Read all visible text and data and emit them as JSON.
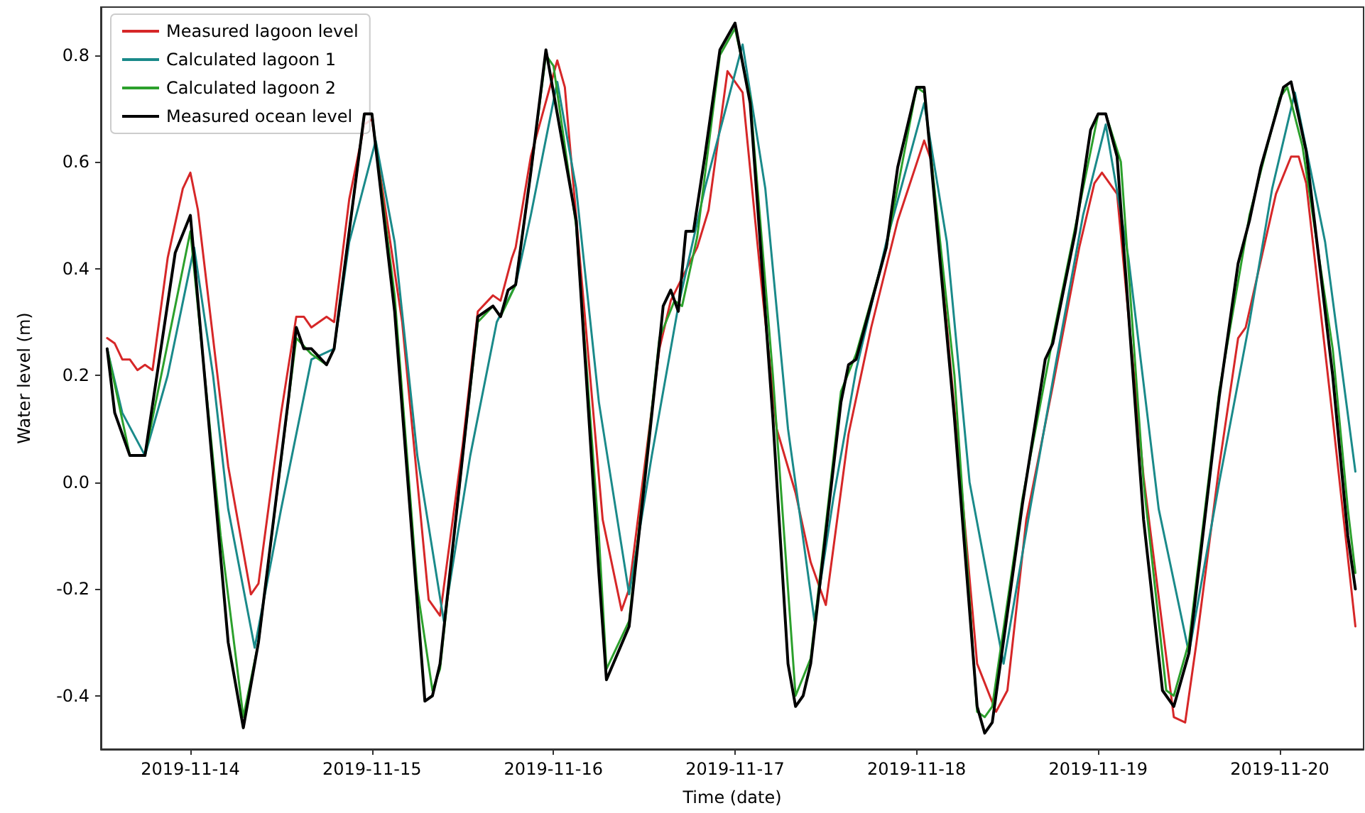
{
  "chart_data": {
    "type": "line",
    "xlabel": "Time (date)",
    "ylabel": "Water level (m)",
    "xlim": [
      "2019-11-13T12:10",
      "2019-11-20T11:05"
    ],
    "xticks": [
      "2019-11-14",
      "2019-11-15",
      "2019-11-16",
      "2019-11-17",
      "2019-11-18",
      "2019-11-19",
      "2019-11-20"
    ],
    "ylim": [
      -0.5,
      0.89
    ],
    "yticks": [
      -0.4,
      -0.2,
      {
        "value": 0,
        "label": "0.0"
      },
      0.2,
      0.4,
      0.6,
      0.8
    ],
    "grid": false,
    "legend": "top left",
    "marker": "none",
    "line_style": "solid",
    "series": [
      {
        "name": "Measured lagoon level",
        "color": "#d62728",
        "x": [
          "2019-11-13T13:00",
          "2019-11-13T14:00",
          "2019-11-13T15:00",
          "2019-11-13T16:00",
          "2019-11-13T17:00",
          "2019-11-13T18:00",
          "2019-11-13T19:00",
          "2019-11-13T21:00",
          "2019-11-13T23:00",
          "2019-11-14T00:00",
          "2019-11-14T01:00",
          "2019-11-14T05:00",
          "2019-11-14T08:00",
          "2019-11-14T09:00",
          "2019-11-14T12:00",
          "2019-11-14T14:00",
          "2019-11-14T15:00",
          "2019-11-14T16:00",
          "2019-11-14T18:00",
          "2019-11-14T19:00",
          "2019-11-14T21:00",
          "2019-11-14T23:00",
          "2019-11-15T00:00",
          "2019-11-15T04:00",
          "2019-11-15T07:30",
          "2019-11-15T09:00",
          "2019-11-15T12:00",
          "2019-11-15T14:00",
          "2019-11-15T16:00",
          "2019-11-15T17:00",
          "2019-11-15T18:30",
          "2019-11-15T19:00",
          "2019-11-15T21:00",
          "2019-11-16T00:30",
          "2019-11-16T01:30",
          "2019-11-16T06:30",
          "2019-11-16T09:00",
          "2019-11-16T10:00",
          "2019-11-16T14:00",
          "2019-11-16T15:30",
          "2019-11-16T19:00",
          "2019-11-16T20:30",
          "2019-11-16T23:00",
          "2019-11-17T01:00",
          "2019-11-17T03:30",
          "2019-11-17T05:30",
          "2019-11-17T08:00",
          "2019-11-17T10:00",
          "2019-11-17T12:00",
          "2019-11-17T15:00",
          "2019-11-17T18:00",
          "2019-11-17T21:30",
          "2019-11-18T01:00",
          "2019-11-18T02:00",
          "2019-11-18T05:30",
          "2019-11-18T08:00",
          "2019-11-18T10:30",
          "2019-11-18T12:00",
          "2019-11-18T14:30",
          "2019-11-18T18:00",
          "2019-11-18T21:30",
          "2019-11-18T23:30",
          "2019-11-19T00:30",
          "2019-11-19T02:30",
          "2019-11-19T06:00",
          "2019-11-19T10:00",
          "2019-11-19T11:30",
          "2019-11-19T13:00",
          "2019-11-19T16:00",
          "2019-11-19T18:30",
          "2019-11-19T19:30",
          "2019-11-19T23:30",
          "2019-11-20T01:30",
          "2019-11-20T02:30",
          "2019-11-20T03:30",
          "2019-11-20T07:00",
          "2019-11-20T10:00"
        ],
        "values": [
          0.27,
          0.26,
          0.23,
          0.23,
          0.21,
          0.22,
          0.21,
          0.42,
          0.55,
          0.58,
          0.51,
          0.03,
          -0.21,
          -0.19,
          0.13,
          0.31,
          0.31,
          0.29,
          0.31,
          0.3,
          0.53,
          0.67,
          0.68,
          0.3,
          -0.22,
          -0.25,
          0.07,
          0.32,
          0.35,
          0.34,
          0.42,
          0.44,
          0.61,
          0.79,
          0.74,
          -0.07,
          -0.24,
          -0.2,
          0.25,
          0.34,
          0.44,
          0.51,
          0.77,
          0.73,
          0.37,
          0.1,
          -0.02,
          -0.15,
          -0.23,
          0.09,
          0.29,
          0.49,
          0.64,
          0.6,
          0.06,
          -0.34,
          -0.43,
          -0.39,
          -0.07,
          0.18,
          0.44,
          0.56,
          0.58,
          0.54,
          0.01,
          -0.44,
          -0.45,
          -0.3,
          0.03,
          0.27,
          0.29,
          0.54,
          0.61,
          0.61,
          0.56,
          0.12,
          -0.27
        ]
      },
      {
        "name": "Calculated lagoon 1",
        "color": "#1a8a8a",
        "x": [
          "2019-11-13T13:00",
          "2019-11-13T15:00",
          "2019-11-13T18:00",
          "2019-11-13T21:00",
          "2019-11-14T00:30",
          "2019-11-14T03:00",
          "2019-11-14T05:00",
          "2019-11-14T08:30",
          "2019-11-14T12:00",
          "2019-11-14T16:00",
          "2019-11-14T19:00",
          "2019-11-14T21:00",
          "2019-11-15T00:30",
          "2019-11-15T03:00",
          "2019-11-15T06:00",
          "2019-11-15T09:30",
          "2019-11-15T13:00",
          "2019-11-15T16:30",
          "2019-11-15T19:00",
          "2019-11-15T21:00",
          "2019-11-16T00:30",
          "2019-11-16T03:00",
          "2019-11-16T06:00",
          "2019-11-16T10:00",
          "2019-11-16T13:00",
          "2019-11-16T16:30",
          "2019-11-16T20:00",
          "2019-11-17T01:00",
          "2019-11-17T04:00",
          "2019-11-17T07:00",
          "2019-11-17T10:30",
          "2019-11-17T13:00",
          "2019-11-17T16:00",
          "2019-11-17T20:00",
          "2019-11-18T01:00",
          "2019-11-18T04:00",
          "2019-11-18T07:00",
          "2019-11-18T11:30",
          "2019-11-18T15:00",
          "2019-11-18T18:30",
          "2019-11-18T22:00",
          "2019-11-19T01:00",
          "2019-11-19T04:00",
          "2019-11-19T08:00",
          "2019-11-19T12:00",
          "2019-11-19T16:00",
          "2019-11-19T20:00",
          "2019-11-19T23:00",
          "2019-11-20T02:00",
          "2019-11-20T06:00",
          "2019-11-20T10:00"
        ],
        "values": [
          0.25,
          0.13,
          0.05,
          0.2,
          0.44,
          0.2,
          -0.05,
          -0.31,
          -0.05,
          0.23,
          0.25,
          0.45,
          0.64,
          0.45,
          0.05,
          -0.26,
          0.05,
          0.3,
          0.37,
          0.5,
          0.75,
          0.55,
          0.15,
          -0.21,
          0.05,
          0.33,
          0.55,
          0.82,
          0.55,
          0.1,
          -0.26,
          -0.03,
          0.21,
          0.45,
          0.71,
          0.45,
          0.0,
          -0.34,
          -0.05,
          0.23,
          0.5,
          0.67,
          0.42,
          -0.05,
          -0.32,
          0.0,
          0.3,
          0.55,
          0.73,
          0.45,
          0.02
        ]
      },
      {
        "name": "Calculated lagoon 2",
        "color": "#2ca02c",
        "x": [
          "2019-11-13T13:00",
          "2019-11-13T16:00",
          "2019-11-13T18:00",
          "2019-11-14T00:00",
          "2019-11-14T04:00",
          "2019-11-14T07:00",
          "2019-11-14T09:00",
          "2019-11-14T14:00",
          "2019-11-14T16:00",
          "2019-11-14T18:00",
          "2019-11-14T19:00",
          "2019-11-14T22:00",
          "2019-11-14T23:00",
          "2019-11-15T00:00",
          "2019-11-15T03:00",
          "2019-11-15T06:00",
          "2019-11-15T08:00",
          "2019-11-15T09:00",
          "2019-11-15T12:00",
          "2019-11-15T14:00",
          "2019-11-15T16:00",
          "2019-11-15T17:00",
          "2019-11-15T19:00",
          "2019-11-15T21:00",
          "2019-11-15T23:00",
          "2019-11-16T00:00",
          "2019-11-16T03:00",
          "2019-11-16T06:00",
          "2019-11-16T07:00",
          "2019-11-16T10:00",
          "2019-11-16T14:00",
          "2019-11-16T16:00",
          "2019-11-16T17:00",
          "2019-11-16T19:00",
          "2019-11-16T22:00",
          "2019-11-17T00:00",
          "2019-11-17T02:00",
          "2019-11-17T05:00",
          "2019-11-17T08:00",
          "2019-11-17T10:00",
          "2019-11-17T14:00",
          "2019-11-17T16:00",
          "2019-11-17T20:00",
          "2019-11-18T00:00",
          "2019-11-18T01:00",
          "2019-11-18T05:00",
          "2019-11-18T08:00",
          "2019-11-18T09:00",
          "2019-11-18T10:00",
          "2019-11-18T14:00",
          "2019-11-18T18:00",
          "2019-11-18T21:00",
          "2019-11-19T00:00",
          "2019-11-19T01:00",
          "2019-11-19T03:00",
          "2019-11-19T06:00",
          "2019-11-19T09:00",
          "2019-11-19T10:00",
          "2019-11-19T12:00",
          "2019-11-19T16:00",
          "2019-11-19T20:00",
          "2019-11-20T00:00",
          "2019-11-20T01:00",
          "2019-11-20T03:00",
          "2019-11-20T07:00",
          "2019-11-20T09:00",
          "2019-11-20T10:00"
        ],
        "values": [
          0.25,
          0.05,
          0.05,
          0.47,
          -0.1,
          -0.44,
          -0.3,
          0.27,
          0.24,
          0.22,
          0.25,
          0.58,
          0.69,
          0.69,
          0.35,
          -0.2,
          -0.39,
          -0.35,
          0.05,
          0.3,
          0.33,
          0.31,
          0.37,
          0.58,
          0.8,
          0.78,
          0.48,
          -0.1,
          -0.35,
          -0.26,
          0.27,
          0.34,
          0.33,
          0.46,
          0.8,
          0.85,
          0.72,
          0.2,
          -0.4,
          -0.33,
          0.17,
          0.24,
          0.44,
          0.74,
          0.73,
          0.2,
          -0.43,
          -0.44,
          -0.42,
          -0.03,
          0.27,
          0.48,
          0.69,
          0.69,
          0.6,
          0.0,
          -0.39,
          -0.4,
          -0.3,
          0.17,
          0.5,
          0.72,
          0.74,
          0.63,
          0.25,
          -0.05,
          -0.17
        ]
      },
      {
        "name": "Measured ocean level",
        "color": "#000000",
        "x": [
          "2019-11-13T13:00",
          "2019-11-13T14:00",
          "2019-11-13T16:00",
          "2019-11-13T18:00",
          "2019-11-13T22:00",
          "2019-11-14T00:00",
          "2019-11-14T05:00",
          "2019-11-14T07:00",
          "2019-11-14T09:00",
          "2019-11-14T13:00",
          "2019-11-14T14:00",
          "2019-11-14T15:00",
          "2019-11-14T16:00",
          "2019-11-14T18:00",
          "2019-11-14T19:00",
          "2019-11-14T22:00",
          "2019-11-14T23:00",
          "2019-11-15T00:00",
          "2019-11-15T03:00",
          "2019-11-15T07:00",
          "2019-11-15T08:00",
          "2019-11-15T09:00",
          "2019-11-15T12:00",
          "2019-11-15T14:00",
          "2019-11-15T16:00",
          "2019-11-15T17:00",
          "2019-11-15T18:00",
          "2019-11-15T19:00",
          "2019-11-15T21:00",
          "2019-11-15T23:00",
          "2019-11-16T03:00",
          "2019-11-16T06:00",
          "2019-11-16T07:00",
          "2019-11-16T10:00",
          "2019-11-16T14:00",
          "2019-11-16T14:30",
          "2019-11-16T15:30",
          "2019-11-16T16:30",
          "2019-11-16T17:30",
          "2019-11-16T18:30",
          "2019-11-16T20:00",
          "2019-11-16T22:00",
          "2019-11-17T00:00",
          "2019-11-17T02:00",
          "2019-11-17T05:00",
          "2019-11-17T07:00",
          "2019-11-17T08:00",
          "2019-11-17T09:00",
          "2019-11-17T10:00",
          "2019-11-17T14:00",
          "2019-11-17T15:00",
          "2019-11-17T16:00",
          "2019-11-17T20:00",
          "2019-11-17T21:30",
          "2019-11-18T00:00",
          "2019-11-18T01:00",
          "2019-11-18T05:00",
          "2019-11-18T08:00",
          "2019-11-18T09:00",
          "2019-11-18T10:00",
          "2019-11-18T14:00",
          "2019-11-18T17:00",
          "2019-11-18T18:00",
          "2019-11-18T21:00",
          "2019-11-18T23:00",
          "2019-11-19T00:00",
          "2019-11-19T01:00",
          "2019-11-19T02:30",
          "2019-11-19T06:00",
          "2019-11-19T08:30",
          "2019-11-19T10:00",
          "2019-11-19T12:00",
          "2019-11-19T16:00",
          "2019-11-19T18:30",
          "2019-11-19T20:00",
          "2019-11-19T21:30",
          "2019-11-20T00:30",
          "2019-11-20T01:30",
          "2019-11-20T03:30",
          "2019-11-20T07:00",
          "2019-11-20T09:00",
          "2019-11-20T10:00"
        ],
        "values": [
          0.25,
          0.13,
          0.05,
          0.05,
          0.43,
          0.5,
          -0.3,
          -0.46,
          -0.3,
          0.16,
          0.29,
          0.25,
          0.25,
          0.22,
          0.25,
          0.58,
          0.69,
          0.69,
          0.32,
          -0.41,
          -0.4,
          -0.34,
          0.05,
          0.31,
          0.33,
          0.31,
          0.36,
          0.37,
          0.58,
          0.81,
          0.49,
          -0.17,
          -0.37,
          -0.27,
          0.26,
          0.33,
          0.36,
          0.32,
          0.47,
          0.47,
          0.61,
          0.81,
          0.86,
          0.71,
          0.12,
          -0.34,
          -0.42,
          -0.4,
          -0.34,
          0.15,
          0.22,
          0.23,
          0.44,
          0.59,
          0.74,
          0.74,
          0.12,
          -0.42,
          -0.47,
          -0.45,
          -0.04,
          0.23,
          0.26,
          0.47,
          0.66,
          0.69,
          0.69,
          0.61,
          -0.07,
          -0.39,
          -0.42,
          -0.32,
          0.16,
          0.41,
          0.49,
          0.59,
          0.74,
          0.75,
          0.62,
          0.2,
          -0.1,
          -0.2
        ]
      }
    ]
  }
}
